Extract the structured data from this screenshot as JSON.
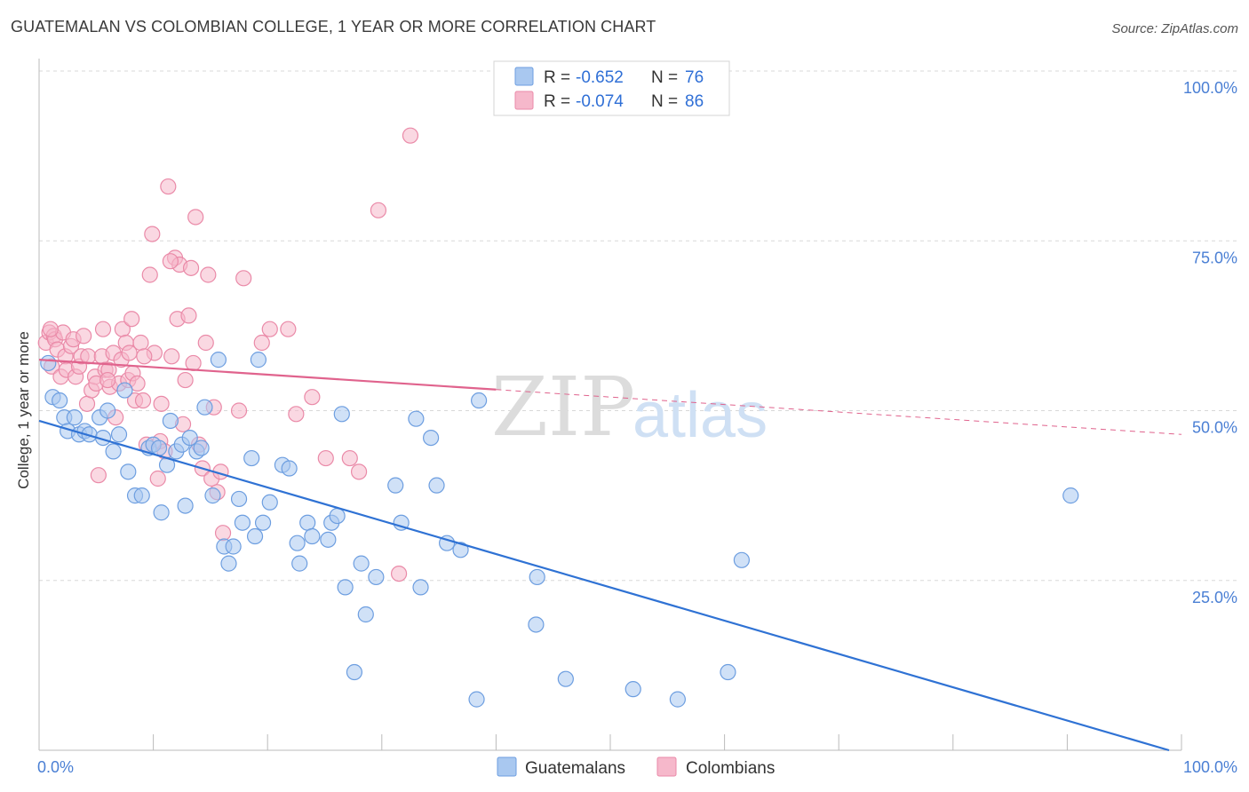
{
  "title": "GUATEMALAN VS COLOMBIAN COLLEGE, 1 YEAR OR MORE CORRELATION CHART",
  "source": "Source: ZipAtlas.com",
  "watermark": {
    "zip": "ZIP",
    "atlas": "atlas"
  },
  "colors": {
    "blue_fill": "#a9c8f0",
    "blue_stroke": "#6d9ee0",
    "blue_line": "#2f72d4",
    "pink_fill": "#f6b8cb",
    "pink_stroke": "#ea8aa8",
    "pink_line": "#e0638d",
    "grid": "#d8d8d8",
    "axis_text": "#4a7fd4"
  },
  "legend": {
    "rows": [
      {
        "r_label": "R = ",
        "r_value": "-0.652",
        "n_label": "N = ",
        "n_value": "76",
        "series": "Guatemalans"
      },
      {
        "r_label": "R = ",
        "r_value": "-0.074",
        "n_label": "N = ",
        "n_value": "86",
        "series": "Colombians"
      }
    ]
  },
  "chart_data": {
    "type": "scatter",
    "xlabel": "",
    "ylabel": "College, 1 year or more",
    "xlim": [
      0,
      100
    ],
    "ylim": [
      0,
      100
    ],
    "x_tick_labels": {
      "left": "0.0%",
      "right": "100.0%"
    },
    "y_tick_labels": [
      "100.0%",
      "75.0%",
      "50.0%",
      "25.0%"
    ],
    "y_tick_values": [
      100,
      75,
      50,
      25
    ],
    "legend_bottom": [
      "Guatemalans",
      "Colombians"
    ],
    "series": [
      {
        "name": "Guatemalans",
        "trend": {
          "x0": 0,
          "y0": 48.5,
          "x1": 100,
          "y1": 0,
          "dashed_from": null
        },
        "points": [
          [
            0.8,
            57
          ],
          [
            1.2,
            52
          ],
          [
            1.8,
            51.5
          ],
          [
            2.2,
            49
          ],
          [
            2.5,
            47
          ],
          [
            3.1,
            49
          ],
          [
            3.5,
            46.5
          ],
          [
            4,
            47
          ],
          [
            4.4,
            46.5
          ],
          [
            5.3,
            49
          ],
          [
            5.6,
            46
          ],
          [
            6,
            50
          ],
          [
            6.5,
            44
          ],
          [
            7,
            46.5
          ],
          [
            7.5,
            53
          ],
          [
            7.8,
            41
          ],
          [
            8.4,
            37.5
          ],
          [
            9,
            37.5
          ],
          [
            9.6,
            44.5
          ],
          [
            10,
            45
          ],
          [
            10.5,
            44.5
          ],
          [
            10.7,
            35
          ],
          [
            11.2,
            42
          ],
          [
            11.5,
            48.5
          ],
          [
            12,
            44
          ],
          [
            12.5,
            45
          ],
          [
            12.8,
            36
          ],
          [
            13.2,
            46
          ],
          [
            13.8,
            44
          ],
          [
            14.2,
            44.5
          ],
          [
            14.5,
            50.5
          ],
          [
            15.2,
            37.5
          ],
          [
            15.7,
            57.5
          ],
          [
            16.2,
            30
          ],
          [
            16.6,
            27.5
          ],
          [
            17.0,
            30
          ],
          [
            17.5,
            37
          ],
          [
            17.8,
            33.5
          ],
          [
            18.6,
            43
          ],
          [
            18.9,
            31.5
          ],
          [
            19.2,
            57.5
          ],
          [
            19.6,
            33.5
          ],
          [
            20.2,
            36.5
          ],
          [
            21.3,
            42
          ],
          [
            21.9,
            41.5
          ],
          [
            22.6,
            30.5
          ],
          [
            22.8,
            27.5
          ],
          [
            23.5,
            33.5
          ],
          [
            23.9,
            31.5
          ],
          [
            25.3,
            31
          ],
          [
            25.6,
            33.5
          ],
          [
            26.1,
            34.5
          ],
          [
            26.5,
            49.5
          ],
          [
            26.8,
            24
          ],
          [
            27.6,
            11.5
          ],
          [
            28.2,
            27.5
          ],
          [
            29.5,
            25.5
          ],
          [
            31.2,
            39
          ],
          [
            31.7,
            33.5
          ],
          [
            33.0,
            48.8
          ],
          [
            34.3,
            46
          ],
          [
            33.4,
            24
          ],
          [
            34.8,
            39
          ],
          [
            35.7,
            30.5
          ],
          [
            36.9,
            29.5
          ],
          [
            38.3,
            7.5
          ],
          [
            38.5,
            51.5
          ],
          [
            43.5,
            18.5
          ],
          [
            43.6,
            25.5
          ],
          [
            46.1,
            10.5
          ],
          [
            52.0,
            9
          ],
          [
            55.9,
            7.5
          ],
          [
            60.3,
            11.5
          ],
          [
            61.5,
            28
          ],
          [
            90.3,
            37.5
          ],
          [
            28.6,
            20
          ]
        ]
      },
      {
        "name": "Colombians",
        "trend": {
          "x0": 0,
          "y0": 57.5,
          "x1": 100,
          "y1": 46.5,
          "dashed_from": 40
        },
        "points": [
          [
            0.6,
            60
          ],
          [
            0.9,
            61.5
          ],
          [
            1.1,
            56.5
          ],
          [
            1.3,
            61
          ],
          [
            1.4,
            60.5
          ],
          [
            1.6,
            59
          ],
          [
            1.9,
            55
          ],
          [
            2.1,
            61.5
          ],
          [
            2.3,
            58
          ],
          [
            2.4,
            56
          ],
          [
            2.8,
            59.5
          ],
          [
            3.0,
            60.5
          ],
          [
            3.2,
            55
          ],
          [
            3.5,
            56.5
          ],
          [
            3.7,
            58
          ],
          [
            3.9,
            61
          ],
          [
            4.2,
            51
          ],
          [
            4.3,
            58
          ],
          [
            4.6,
            53
          ],
          [
            4.9,
            55
          ],
          [
            5.0,
            54
          ],
          [
            5.2,
            40.5
          ],
          [
            5.5,
            58
          ],
          [
            5.6,
            62
          ],
          [
            5.8,
            56
          ],
          [
            6.1,
            56
          ],
          [
            6.2,
            53.5
          ],
          [
            6.5,
            58.5
          ],
          [
            6.7,
            49
          ],
          [
            7.0,
            54
          ],
          [
            7.2,
            57.5
          ],
          [
            7.3,
            62
          ],
          [
            7.6,
            60
          ],
          [
            7.8,
            54.5
          ],
          [
            7.9,
            58.5
          ],
          [
            8.1,
            63.5
          ],
          [
            8.2,
            55.5
          ],
          [
            8.4,
            51.5
          ],
          [
            8.6,
            54
          ],
          [
            8.9,
            60
          ],
          [
            9.1,
            51.5
          ],
          [
            9.4,
            45
          ],
          [
            9.7,
            70
          ],
          [
            9.9,
            76
          ],
          [
            10.1,
            58.5
          ],
          [
            10.4,
            40
          ],
          [
            10.6,
            45.5
          ],
          [
            10.7,
            51
          ],
          [
            11.0,
            44
          ],
          [
            11.3,
            83
          ],
          [
            11.6,
            58
          ],
          [
            11.9,
            72.5
          ],
          [
            12.1,
            63.5
          ],
          [
            12.3,
            71.5
          ],
          [
            12.6,
            48
          ],
          [
            12.8,
            54.5
          ],
          [
            13.1,
            64
          ],
          [
            13.3,
            71
          ],
          [
            13.5,
            57
          ],
          [
            13.7,
            78.5
          ],
          [
            14.0,
            45
          ],
          [
            14.3,
            41.5
          ],
          [
            14.6,
            60
          ],
          [
            14.8,
            70
          ],
          [
            15.1,
            40
          ],
          [
            15.3,
            50.5
          ],
          [
            15.6,
            38
          ],
          [
            15.9,
            41
          ],
          [
            16.1,
            32
          ],
          [
            17.5,
            50
          ],
          [
            17.9,
            69.5
          ],
          [
            19.5,
            60
          ],
          [
            20.2,
            62
          ],
          [
            21.8,
            62
          ],
          [
            22.5,
            49.5
          ],
          [
            23.9,
            52
          ],
          [
            25.1,
            43
          ],
          [
            27.2,
            43
          ],
          [
            28.0,
            41
          ],
          [
            29.7,
            79.5
          ],
          [
            31.5,
            26
          ],
          [
            32.5,
            90.5
          ],
          [
            9.2,
            58
          ],
          [
            6.0,
            54.5
          ],
          [
            1.0,
            62
          ],
          [
            11.5,
            72
          ]
        ]
      }
    ]
  }
}
